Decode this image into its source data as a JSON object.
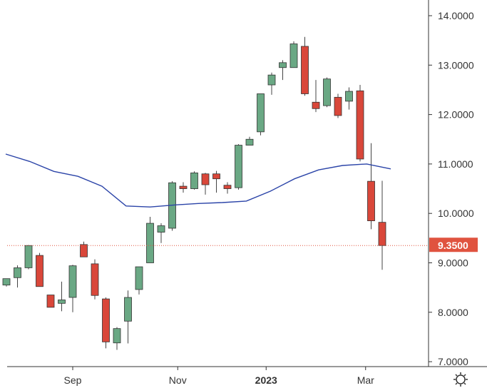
{
  "chart_data": {
    "type": "candlestick",
    "title": "",
    "xlabel": "",
    "ylabel": "",
    "ylim": [
      7.0,
      14.3
    ],
    "grid": false,
    "y_ticks": [
      "14.0000",
      "13.0000",
      "12.0000",
      "11.0000",
      "10.0000",
      "9.0000",
      "8.0000",
      "7.0000"
    ],
    "x_ticks": [
      {
        "label": "Sep",
        "bold": false
      },
      {
        "label": "Nov",
        "bold": false
      },
      {
        "label": "2023",
        "bold": true
      },
      {
        "label": "Mar",
        "bold": false
      }
    ],
    "current_price": {
      "label": "9.3500",
      "value": 9.35,
      "color": "#e0533f"
    },
    "colors": {
      "up": "#6aa884",
      "down": "#d9473a",
      "ma_line": "#2b44a8",
      "axis": "#333333"
    },
    "candles": [
      {
        "open": 8.55,
        "high": 8.68,
        "low": 8.52,
        "close": 8.68
      },
      {
        "open": 8.7,
        "high": 8.95,
        "low": 8.5,
        "close": 8.9
      },
      {
        "open": 8.9,
        "high": 9.36,
        "low": 8.87,
        "close": 9.35
      },
      {
        "open": 9.15,
        "high": 9.2,
        "low": 8.52,
        "close": 8.52
      },
      {
        "open": 8.35,
        "high": 8.35,
        "low": 8.1,
        "close": 8.1
      },
      {
        "open": 8.18,
        "high": 8.62,
        "low": 8.02,
        "close": 8.25
      },
      {
        "open": 8.3,
        "high": 8.96,
        "low": 8.0,
        "close": 8.94
      },
      {
        "open": 9.37,
        "high": 9.43,
        "low": 9.12,
        "close": 9.12
      },
      {
        "open": 8.98,
        "high": 9.07,
        "low": 8.26,
        "close": 8.34
      },
      {
        "open": 8.27,
        "high": 8.3,
        "low": 7.27,
        "close": 7.4
      },
      {
        "open": 7.38,
        "high": 7.7,
        "low": 7.24,
        "close": 7.67
      },
      {
        "open": 7.82,
        "high": 8.44,
        "low": 7.37,
        "close": 8.3
      },
      {
        "open": 8.46,
        "high": 8.92,
        "low": 8.36,
        "close": 8.92
      },
      {
        "open": 9.0,
        "high": 9.93,
        "low": 9.0,
        "close": 9.8
      },
      {
        "open": 9.62,
        "high": 9.8,
        "low": 9.4,
        "close": 9.75
      },
      {
        "open": 9.7,
        "high": 10.65,
        "low": 9.65,
        "close": 10.62
      },
      {
        "open": 10.55,
        "high": 10.63,
        "low": 10.42,
        "close": 10.5
      },
      {
        "open": 10.5,
        "high": 10.85,
        "low": 10.48,
        "close": 10.82
      },
      {
        "open": 10.8,
        "high": 10.82,
        "low": 10.38,
        "close": 10.58
      },
      {
        "open": 10.8,
        "high": 10.86,
        "low": 10.42,
        "close": 10.7
      },
      {
        "open": 10.57,
        "high": 10.63,
        "low": 10.4,
        "close": 10.5
      },
      {
        "open": 10.52,
        "high": 11.4,
        "low": 10.48,
        "close": 11.38
      },
      {
        "open": 11.38,
        "high": 11.55,
        "low": 11.38,
        "close": 11.5
      },
      {
        "open": 11.65,
        "high": 12.42,
        "low": 11.58,
        "close": 12.42
      },
      {
        "open": 12.6,
        "high": 12.85,
        "low": 12.4,
        "close": 12.8
      },
      {
        "open": 12.95,
        "high": 13.1,
        "low": 12.7,
        "close": 13.05
      },
      {
        "open": 12.95,
        "high": 13.48,
        "low": 12.95,
        "close": 13.43
      },
      {
        "open": 13.38,
        "high": 13.57,
        "low": 12.38,
        "close": 12.42
      },
      {
        "open": 12.25,
        "high": 12.7,
        "low": 12.05,
        "close": 12.12
      },
      {
        "open": 12.18,
        "high": 12.75,
        "low": 12.15,
        "close": 12.72
      },
      {
        "open": 12.35,
        "high": 12.42,
        "low": 11.93,
        "close": 11.98
      },
      {
        "open": 12.27,
        "high": 12.55,
        "low": 12.1,
        "close": 12.47
      },
      {
        "open": 12.48,
        "high": 12.6,
        "low": 11.05,
        "close": 11.1
      },
      {
        "open": 10.65,
        "high": 11.42,
        "low": 9.68,
        "close": 9.85
      },
      {
        "open": 9.82,
        "high": 10.66,
        "low": 8.86,
        "close": 9.35
      }
    ],
    "moving_average": [
      11.2,
      11.05,
      10.85,
      10.75,
      10.55,
      10.15,
      10.13,
      10.17,
      10.2,
      10.22,
      10.25,
      10.45,
      10.7,
      10.88,
      10.97,
      11.0,
      10.9
    ]
  },
  "icons": {
    "settings": "gear-icon"
  }
}
